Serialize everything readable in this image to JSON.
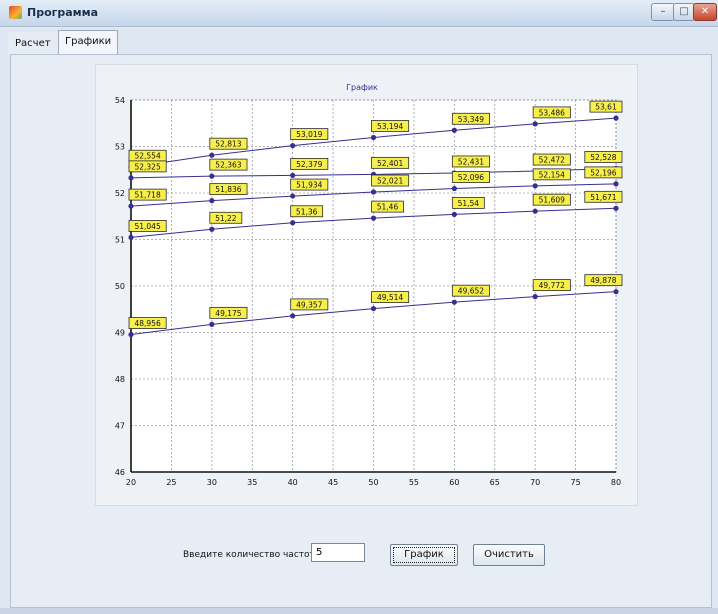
{
  "window": {
    "title": "Программа",
    "buttons": [
      "–",
      "□",
      "✕"
    ]
  },
  "tabs": [
    {
      "label": "Расчет",
      "active": false
    },
    {
      "label": "Графики",
      "active": true
    }
  ],
  "controls": {
    "freq_label": "Введите количество частот:",
    "freq_value": "5",
    "plot_button": "График",
    "clear_button": "Очистить"
  },
  "chart_data": {
    "type": "line",
    "title": "График",
    "xlabel": "",
    "ylabel": "",
    "x_ticks": [
      20,
      25,
      30,
      35,
      40,
      45,
      50,
      55,
      60,
      65,
      70,
      75,
      80
    ],
    "y_ticks": [
      46,
      47,
      48,
      49,
      50,
      51,
      52,
      53,
      54
    ],
    "xlim": [
      20,
      80
    ],
    "ylim": [
      46,
      54
    ],
    "grid": true,
    "colors": {
      "line": "#3a2f8e",
      "label_bg": "#f7ef4b",
      "label_border": "#2b2b2b"
    },
    "x": [
      20,
      30,
      40,
      50,
      60,
      70,
      80
    ],
    "series": [
      {
        "values": [
          52.554,
          52.813,
          53.019,
          53.194,
          53.349,
          53.486,
          53.61
        ],
        "labels": [
          "52,554",
          "52,813",
          "53,019",
          "53,194",
          "53,349",
          "53,486",
          "53,61"
        ]
      },
      {
        "values": [
          52.325,
          52.363,
          52.379,
          52.401,
          52.431,
          52.472,
          52.528
        ],
        "labels": [
          "52,325",
          "52,363",
          "52,379",
          "52,401",
          "52,431",
          "52,472",
          "52,528"
        ]
      },
      {
        "values": [
          51.718,
          51.836,
          51.934,
          52.021,
          52.096,
          52.154,
          52.196
        ],
        "labels": [
          "51,718",
          "51,836",
          "51,934",
          "52,021",
          "52,096",
          "52,154",
          "52,196"
        ]
      },
      {
        "values": [
          51.045,
          51.22,
          51.36,
          51.46,
          51.54,
          51.609,
          51.671
        ],
        "labels": [
          "51,045",
          "51,22",
          "51,36",
          "51,46",
          "51,54",
          "51,609",
          "51,671"
        ]
      },
      {
        "values": [
          48.956,
          49.175,
          49.357,
          49.514,
          49.652,
          49.772,
          49.878
        ],
        "labels": [
          "48,956",
          "49,175",
          "49,357",
          "49,514",
          "49,652",
          "49,772",
          "49,878"
        ]
      }
    ]
  }
}
